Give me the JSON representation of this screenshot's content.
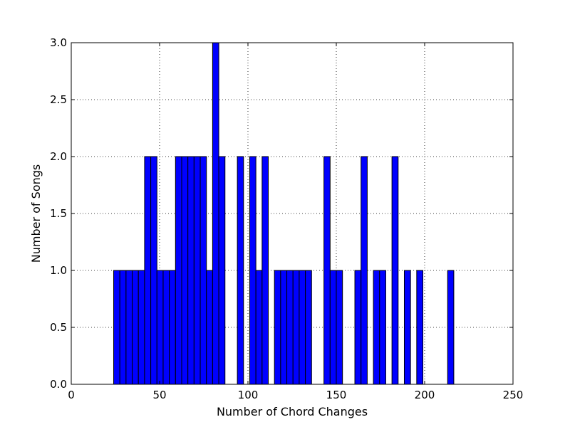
{
  "chart_data": {
    "type": "bar",
    "title": "",
    "xlabel": "Number of Chord Changes",
    "ylabel": "Number of Songs",
    "xlim": [
      0,
      250
    ],
    "ylim": [
      0,
      3.0
    ],
    "xticks": [
      "0",
      "50",
      "100",
      "150",
      "200",
      "250"
    ],
    "yticks": [
      "0.0",
      "0.5",
      "1.0",
      "1.5",
      "2.0",
      "2.5",
      "3.0"
    ],
    "grid": true,
    "bar_color": "#0000ff",
    "bin_width": 3.5,
    "bins": [
      {
        "x": 24,
        "value": 1
      },
      {
        "x": 27.5,
        "value": 1
      },
      {
        "x": 31,
        "value": 1
      },
      {
        "x": 34.5,
        "value": 1
      },
      {
        "x": 38,
        "value": 1
      },
      {
        "x": 41.5,
        "value": 2
      },
      {
        "x": 45,
        "value": 2
      },
      {
        "x": 48.5,
        "value": 1
      },
      {
        "x": 52,
        "value": 1
      },
      {
        "x": 55.5,
        "value": 1
      },
      {
        "x": 59,
        "value": 2
      },
      {
        "x": 62.5,
        "value": 2
      },
      {
        "x": 66,
        "value": 2
      },
      {
        "x": 69.5,
        "value": 2
      },
      {
        "x": 73,
        "value": 2
      },
      {
        "x": 76.5,
        "value": 1
      },
      {
        "x": 80,
        "value": 3
      },
      {
        "x": 83.5,
        "value": 2
      },
      {
        "x": 94,
        "value": 2
      },
      {
        "x": 101,
        "value": 2
      },
      {
        "x": 104.5,
        "value": 1
      },
      {
        "x": 108,
        "value": 2
      },
      {
        "x": 115,
        "value": 1
      },
      {
        "x": 118.5,
        "value": 1
      },
      {
        "x": 122,
        "value": 1
      },
      {
        "x": 125.5,
        "value": 1
      },
      {
        "x": 129,
        "value": 1
      },
      {
        "x": 132.5,
        "value": 1
      },
      {
        "x": 143,
        "value": 2
      },
      {
        "x": 146.5,
        "value": 1
      },
      {
        "x": 150,
        "value": 1
      },
      {
        "x": 160.5,
        "value": 1
      },
      {
        "x": 164,
        "value": 2
      },
      {
        "x": 171,
        "value": 1
      },
      {
        "x": 174.5,
        "value": 1
      },
      {
        "x": 181.5,
        "value": 2
      },
      {
        "x": 188.5,
        "value": 1
      },
      {
        "x": 195.5,
        "value": 1
      },
      {
        "x": 213,
        "value": 1
      }
    ]
  }
}
